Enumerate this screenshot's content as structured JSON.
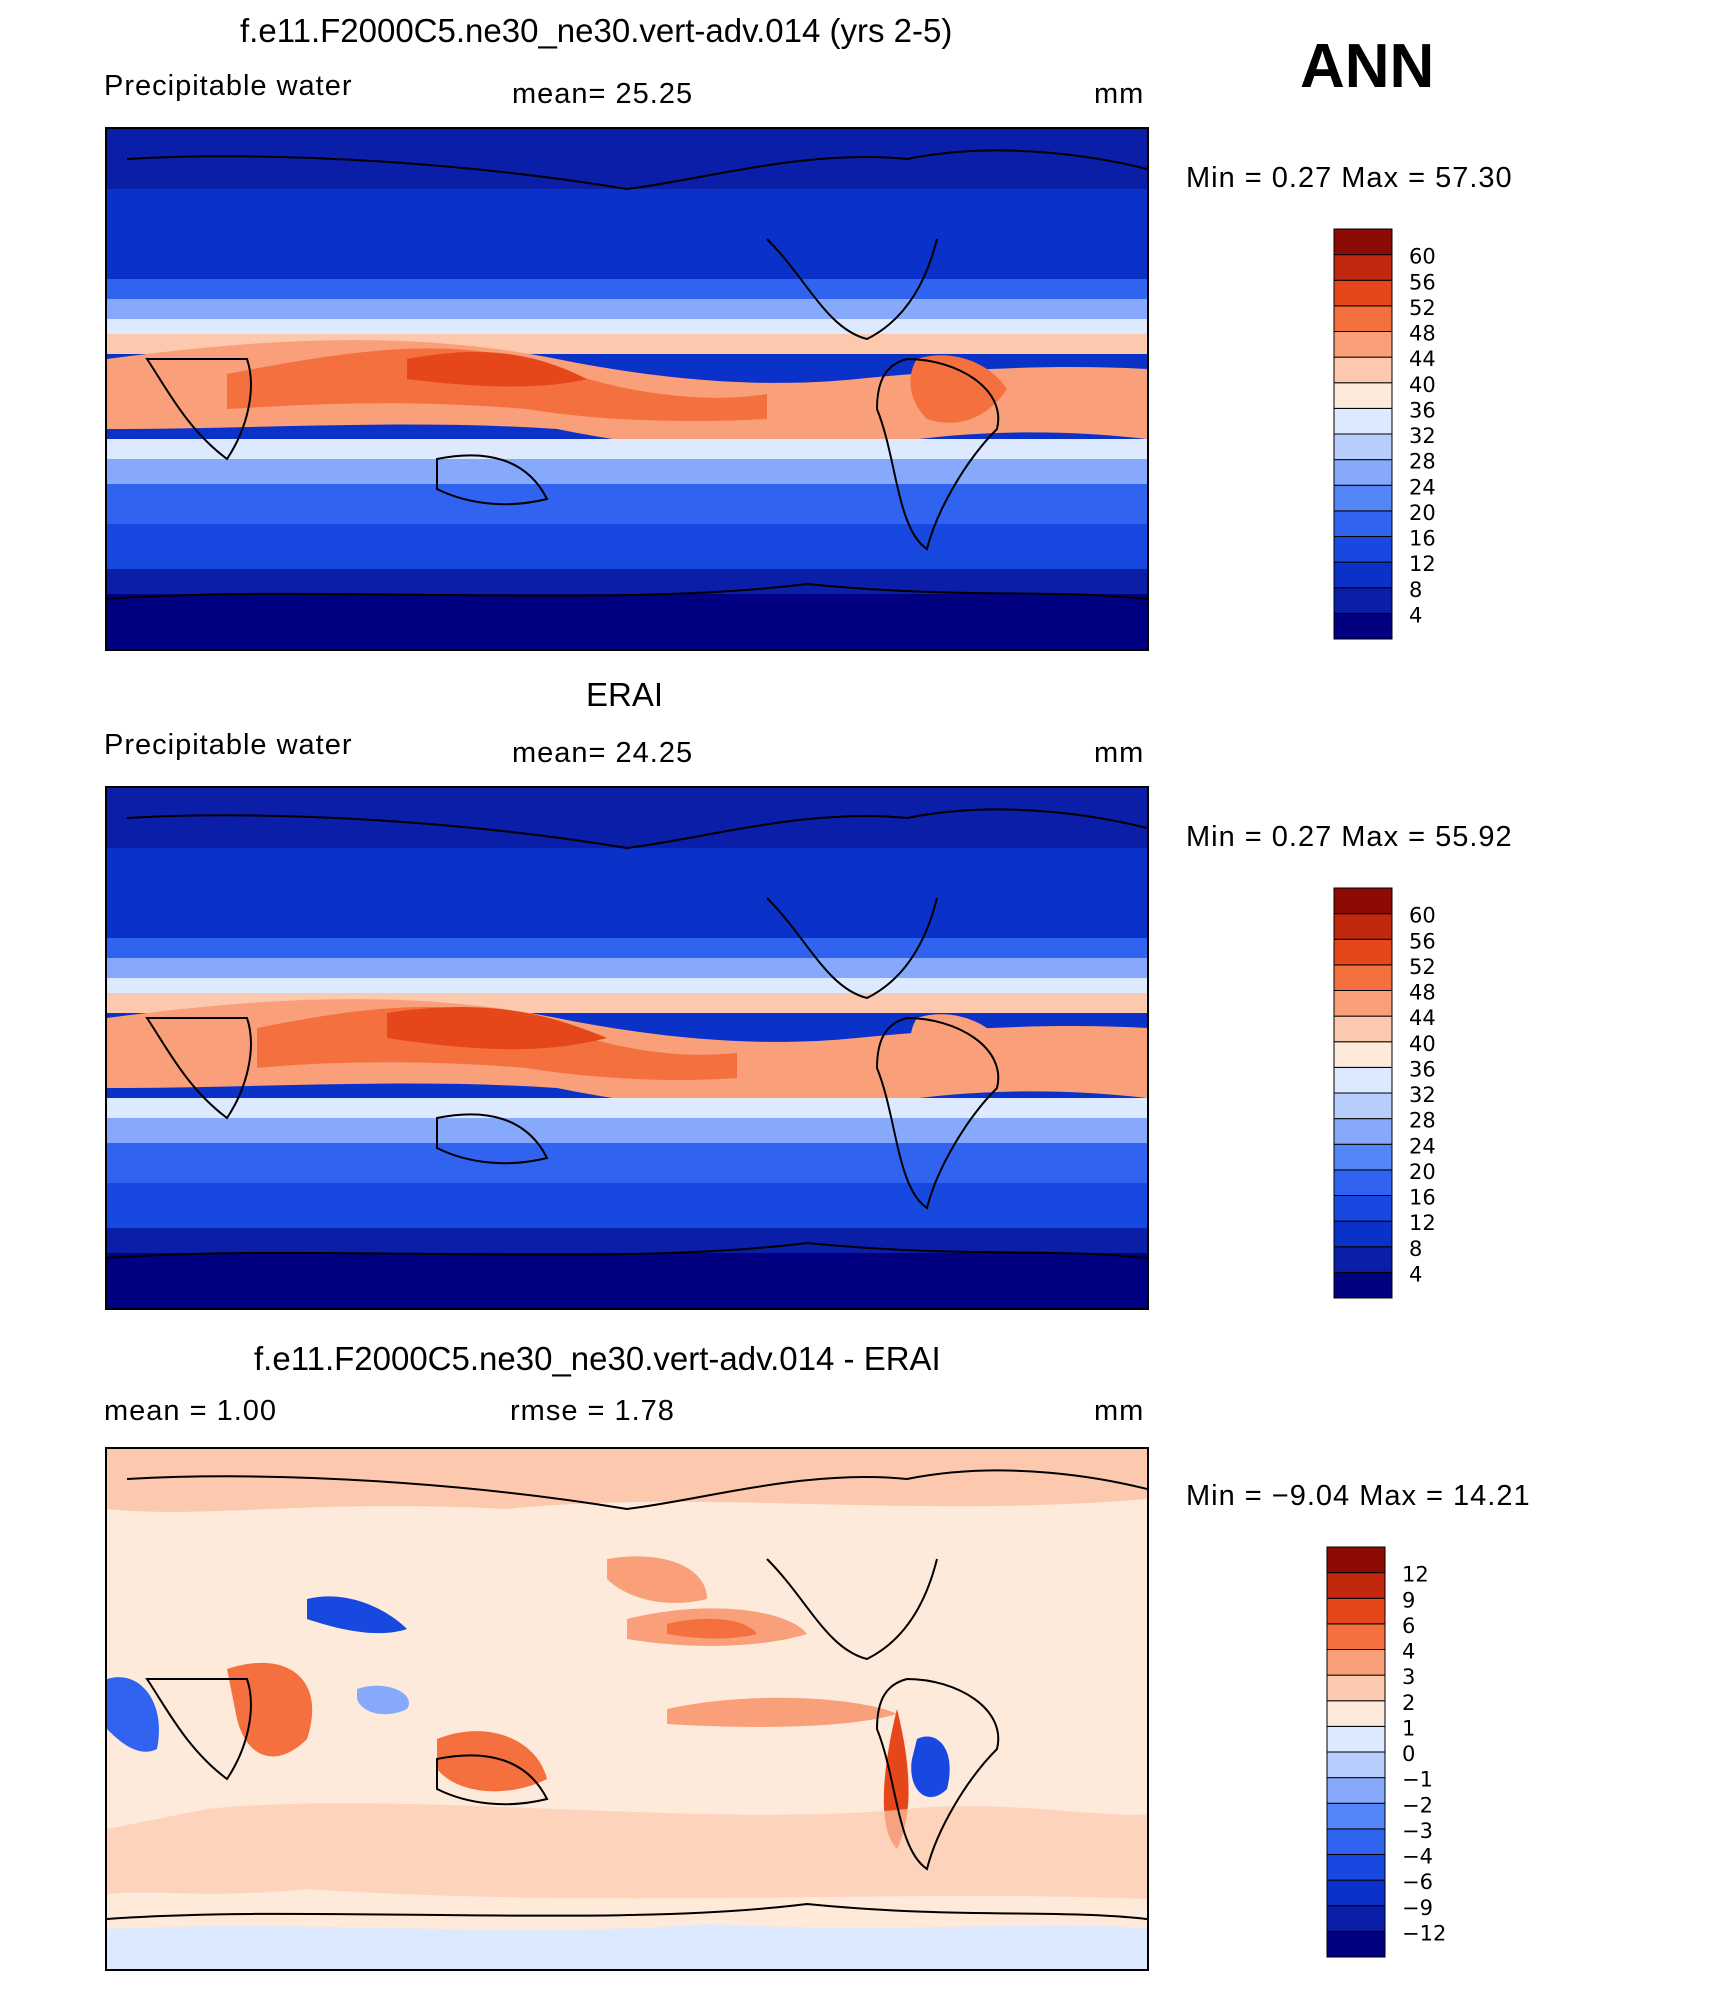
{
  "season": "ANN",
  "panels": [
    {
      "title": "f.e11.F2000C5.ne30_ne30.vert-adv.014 (yrs 2-5)",
      "left_label": "Precipitable  water",
      "center_label": "mean=   25.25",
      "units": "mm",
      "minmax": "Min  =     0.27  Max  =    57.30",
      "colorbar": {
        "levels": [
          "4",
          "8",
          "12",
          "16",
          "20",
          "24",
          "28",
          "32",
          "36",
          "40",
          "44",
          "48",
          "52",
          "56",
          "60"
        ],
        "colors": [
          "#000080",
          "#0b1ea8",
          "#0a31c8",
          "#1748e0",
          "#3064f0",
          "#5586f7",
          "#86a9fb",
          "#b7cefd",
          "#dde9fe",
          "#fdeadb",
          "#fcc9ae",
          "#f99f7a",
          "#f4703f",
          "#e5461a",
          "#c1280d",
          "#8c0b05"
        ]
      },
      "chart_data": {
        "type": "heatmap",
        "variable": "Precipitable water",
        "units": "mm",
        "mean": 25.25,
        "min": 0.27,
        "max": 57.3,
        "contour_levels": [
          4,
          8,
          12,
          16,
          20,
          24,
          28,
          32,
          36,
          40,
          44,
          48,
          52,
          56,
          60
        ]
      }
    },
    {
      "title": "ERAI",
      "left_label": "Precipitable  water",
      "center_label": "mean=   24.25",
      "units": "mm",
      "minmax": "Min  =     0.27  Max  =    55.92",
      "colorbar": {
        "levels": [
          "4",
          "8",
          "12",
          "16",
          "20",
          "24",
          "28",
          "32",
          "36",
          "40",
          "44",
          "48",
          "52",
          "56",
          "60"
        ],
        "colors": [
          "#000080",
          "#0b1ea8",
          "#0a31c8",
          "#1748e0",
          "#3064f0",
          "#5586f7",
          "#86a9fb",
          "#b7cefd",
          "#dde9fe",
          "#fdeadb",
          "#fcc9ae",
          "#f99f7a",
          "#f4703f",
          "#e5461a",
          "#c1280d",
          "#8c0b05"
        ]
      },
      "chart_data": {
        "type": "heatmap",
        "variable": "Precipitable water",
        "units": "mm",
        "mean": 24.25,
        "min": 0.27,
        "max": 55.92,
        "contour_levels": [
          4,
          8,
          12,
          16,
          20,
          24,
          28,
          32,
          36,
          40,
          44,
          48,
          52,
          56,
          60
        ]
      }
    },
    {
      "title": "f.e11.F2000C5.ne30_ne30.vert-adv.014 - ERAI",
      "left_label": "mean  =     1.00",
      "center_label": "rmse  =     1.78",
      "units": "mm",
      "minmax": "Min  =   −9.04  Max  =    14.21",
      "colorbar": {
        "levels": [
          "−12",
          "−9",
          "−6",
          "−4",
          "−3",
          "−2",
          "−1",
          "0",
          "1",
          "2",
          "3",
          "4",
          "6",
          "9",
          "12"
        ],
        "colors": [
          "#000080",
          "#0b1ea8",
          "#0a31c8",
          "#1748e0",
          "#3064f0",
          "#5586f7",
          "#86a9fb",
          "#b7cefd",
          "#dde9fe",
          "#fdeadb",
          "#fcc9ae",
          "#f99f7a",
          "#f4703f",
          "#e5461a",
          "#c1280d",
          "#8c0b05"
        ]
      },
      "chart_data": {
        "type": "heatmap",
        "variable": "Precipitable water difference",
        "units": "mm",
        "mean": 1.0,
        "rmse": 1.78,
        "min": -9.04,
        "max": 14.21,
        "contour_levels": [
          -12,
          -9,
          -6,
          -4,
          -3,
          -2,
          -1,
          0,
          1,
          2,
          3,
          4,
          6,
          9,
          12
        ]
      }
    }
  ]
}
